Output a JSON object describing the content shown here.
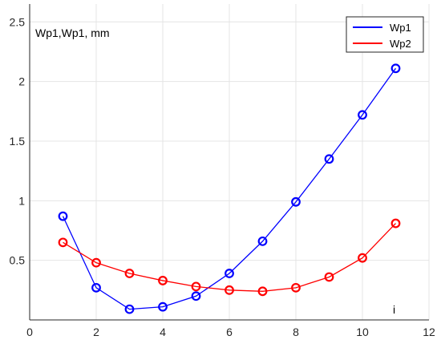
{
  "chart_data": {
    "type": "line",
    "title": "",
    "ylabel": "Wp1,Wp1, mm",
    "xlabel": "i",
    "xlim": [
      0,
      12
    ],
    "ylim": [
      0,
      2.65
    ],
    "x_ticks": [
      0,
      2,
      4,
      6,
      8,
      10,
      12
    ],
    "y_ticks": [
      0.5,
      1,
      1.5,
      2,
      2.5
    ],
    "x_tick_labels": [
      "0",
      "2",
      "4",
      "6",
      "8",
      "10",
      "12"
    ],
    "y_tick_labels": [
      "0.5",
      "1",
      "1.5",
      "2",
      "2.5"
    ],
    "grid": true,
    "legend_position": "top-right",
    "x": [
      1,
      2,
      3,
      4,
      5,
      6,
      7,
      8,
      9,
      10,
      11
    ],
    "series": [
      {
        "name": "Wp1",
        "color": "#0000ff",
        "marker": "circle",
        "values": [
          0.87,
          0.27,
          0.09,
          0.11,
          0.2,
          0.39,
          0.66,
          0.99,
          1.35,
          1.72,
          2.11
        ]
      },
      {
        "name": "Wp2",
        "color": "#ff0000",
        "marker": "circle",
        "values": [
          0.65,
          0.48,
          0.39,
          0.33,
          0.28,
          0.25,
          0.24,
          0.27,
          0.36,
          0.52,
          0.81
        ]
      }
    ]
  }
}
